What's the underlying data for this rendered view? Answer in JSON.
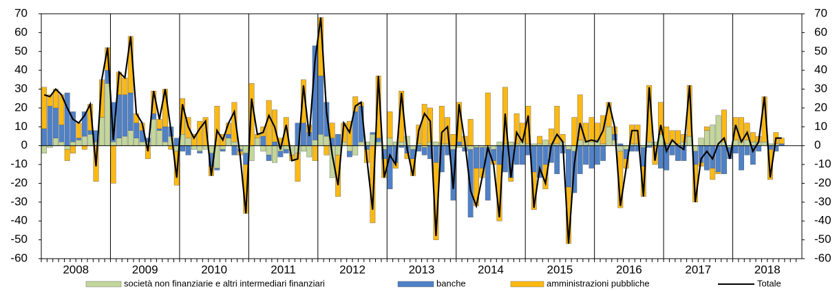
{
  "chart_data": {
    "type": "stacked-bar-line",
    "categories": [
      null,
      null,
      null,
      null,
      null,
      "2008",
      null,
      null,
      null,
      null,
      null,
      null,
      null,
      null,
      null,
      null,
      null,
      "2009",
      null,
      null,
      null,
      null,
      null,
      null,
      null,
      null,
      null,
      null,
      null,
      "2010",
      null,
      null,
      null,
      null,
      null,
      null,
      null,
      null,
      null,
      null,
      null,
      "2011",
      null,
      null,
      null,
      null,
      null,
      null,
      null,
      null,
      null,
      null,
      null,
      "2012",
      null,
      null,
      null,
      null,
      null,
      null,
      null,
      null,
      null,
      null,
      null,
      "2013",
      null,
      null,
      null,
      null,
      null,
      null,
      null,
      null,
      null,
      null,
      null,
      "2014",
      null,
      null,
      null,
      null,
      null,
      null,
      null,
      null,
      null,
      null,
      null,
      "2015",
      null,
      null,
      null,
      null,
      null,
      null,
      null,
      null,
      null,
      null,
      null,
      "2016",
      null,
      null,
      null,
      null,
      null,
      null,
      null,
      null,
      null,
      null,
      null,
      "2017",
      null,
      null,
      null,
      null,
      null,
      null,
      null,
      null,
      null,
      null,
      null,
      "2018",
      null,
      null,
      null,
      null,
      null,
      null
    ],
    "series": [
      {
        "name": "società non finanziarie e altri intermediari finanziari",
        "color": "#c3d69b",
        "kind": "bar",
        "values": [
          -4,
          -1,
          4,
          2,
          -2,
          2,
          3,
          5,
          6,
          2,
          15,
          33,
          2,
          4,
          5,
          8,
          4,
          2,
          2,
          14,
          8,
          2,
          5,
          -3,
          6,
          4,
          -2,
          -3,
          -2,
          -4,
          -12,
          -2,
          4,
          2,
          -2,
          -4,
          -8,
          4,
          -3,
          -5,
          -9,
          -3,
          -2,
          -5,
          -4,
          -3,
          -6,
          3,
          6,
          5,
          -17,
          -5,
          2,
          -3,
          -5,
          2,
          2,
          6,
          2,
          -2,
          4,
          2,
          2,
          5,
          -2,
          1,
          -1,
          2,
          2,
          1,
          1,
          -2,
          -1,
          -1,
          -2,
          -1,
          -1,
          -1,
          -2,
          2,
          1,
          2,
          1,
          2,
          1,
          1,
          1,
          3,
          1,
          1,
          2,
          -2,
          -3,
          3,
          2,
          2,
          3,
          1,
          10,
          3,
          -3,
          -2,
          1,
          1,
          -1,
          2,
          2,
          6,
          1,
          2,
          1,
          2,
          5,
          -3,
          4,
          8,
          11,
          16,
          2,
          -1,
          3,
          2,
          3,
          2,
          2,
          2,
          1,
          1,
          0,
          null,
          null,
          null
        ]
      },
      {
        "name": "banche",
        "color": "#4f81c7",
        "kind": "bar",
        "values": [
          9,
          21,
          16,
          9,
          28,
          16,
          1,
          13,
          2,
          6,
          0,
          7,
          21,
          23,
          22,
          20,
          8,
          6,
          2,
          3,
          1,
          8,
          5,
          4,
          -3,
          -5,
          0,
          -1,
          0,
          -7,
          -1,
          -1,
          2,
          -5,
          -1,
          -6,
          0,
          0,
          5,
          -3,
          2,
          -3,
          -2,
          0,
          12,
          12,
          7,
          50,
          31,
          18,
          4,
          6,
          0,
          -3,
          18,
          19,
          -2,
          1,
          2,
          -5,
          -23,
          -9,
          -1,
          -4,
          -5,
          -3,
          -4,
          -7,
          -9,
          -14,
          -5,
          -27,
          2,
          -2,
          -36,
          -11,
          -11,
          -28,
          -6,
          -10,
          -14,
          -17,
          -10,
          -10,
          -5,
          -14,
          -17,
          -10,
          -9,
          -15,
          -4,
          -20,
          -22,
          -15,
          -10,
          -12,
          -10,
          -8,
          0,
          3,
          1,
          -5,
          -3,
          -3,
          -10,
          -1,
          0,
          -12,
          -13,
          -5,
          -8,
          -8,
          0,
          -7,
          -9,
          -13,
          -12,
          -14,
          -15,
          -6,
          -4,
          -13,
          -5,
          -10,
          -3,
          0,
          -2,
          -3,
          1,
          null,
          null,
          null
        ]
      },
      {
        "name": "amministrazioni pubbliche",
        "color": "#fdb913",
        "kind": "bar",
        "values": [
          22,
          6,
          10,
          16,
          -6,
          -4,
          8,
          -2,
          14,
          -19,
          20,
          12,
          -20,
          12,
          9,
          30,
          5,
          4,
          -7,
          12,
          5,
          20,
          -2,
          -18,
          19,
          11,
          6,
          13,
          15,
          -5,
          21,
          6,
          6,
          21,
          -2,
          -26,
          33,
          2,
          5,
          24,
          17,
          4,
          15,
          -3,
          -15,
          23,
          4,
          -8,
          31,
          -5,
          8,
          -22,
          10,
          13,
          8,
          2,
          -7,
          -41,
          33,
          -10,
          14,
          -3,
          27,
          -3,
          -9,
          10,
          22,
          18,
          -41,
          20,
          14,
          6,
          21,
          5,
          14,
          -20,
          -5,
          28,
          -2,
          -30,
          30,
          -2,
          16,
          10,
          20,
          -20,
          4,
          -13,
          8,
          20,
          4,
          -30,
          15,
          24,
          10,
          13,
          9,
          15,
          13,
          4,
          -30,
          -5,
          10,
          10,
          -16,
          30,
          -10,
          17,
          9,
          6,
          7,
          4,
          27,
          -20,
          -2,
          2,
          -6,
          -1,
          17,
          0,
          12,
          13,
          9,
          5,
          3,
          24,
          -16,
          6,
          3,
          null,
          null,
          null
        ]
      },
      {
        "name": "Totale",
        "color": "#000000",
        "kind": "line",
        "values": [
          27,
          26,
          30,
          27,
          20,
          14,
          12,
          16,
          22,
          -11,
          35,
          52,
          3,
          39,
          36,
          58,
          17,
          12,
          -3,
          29,
          14,
          30,
          8,
          -17,
          22,
          10,
          4,
          9,
          13,
          -16,
          8,
          3,
          12,
          18,
          -5,
          -36,
          25,
          6,
          7,
          16,
          10,
          -2,
          11,
          -8,
          -7,
          32,
          5,
          45,
          68,
          18,
          -5,
          -21,
          12,
          7,
          21,
          23,
          -7,
          -34,
          37,
          -17,
          -5,
          -10,
          28,
          -2,
          -16,
          8,
          17,
          13,
          -48,
          7,
          10,
          -23,
          22,
          2,
          -24,
          -32,
          -17,
          -1,
          -10,
          -38,
          17,
          -17,
          7,
          2,
          16,
          -33,
          -12,
          -20,
          0,
          6,
          2,
          -52,
          -10,
          12,
          2,
          3,
          2,
          8,
          23,
          10,
          -32,
          -12,
          8,
          8,
          -27,
          31,
          -8,
          11,
          -3,
          3,
          0,
          -2,
          32,
          -30,
          -7,
          -3,
          -7,
          1,
          4,
          -7,
          11,
          2,
          7,
          -3,
          2,
          26,
          -17,
          4,
          4,
          null,
          null,
          null
        ]
      }
    ],
    "ylim": [
      -60,
      70
    ],
    "yticks": [
      -60,
      -50,
      -40,
      -30,
      -20,
      -10,
      0,
      10,
      20,
      30,
      40,
      50,
      60,
      70
    ],
    "y2lim": [
      -60,
      70
    ],
    "y2ticks": [
      -60,
      -50,
      -40,
      -30,
      -20,
      -10,
      0,
      10,
      20,
      30,
      40,
      50,
      60,
      70
    ],
    "legend": "bottom"
  }
}
